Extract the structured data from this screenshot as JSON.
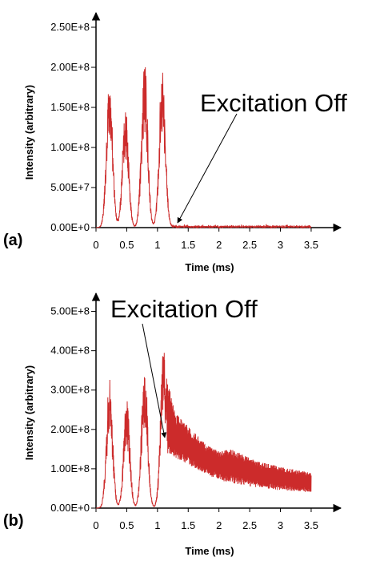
{
  "colors": {
    "signal": "#cc2b2b",
    "axis": "#000000"
  },
  "chart_data": [
    {
      "type": "line",
      "panel_label": "(a)",
      "xlabel": "Time (ms)",
      "ylabel": "Intensity (arbitrary)",
      "xlim": [
        0,
        3.8
      ],
      "ylim": [
        0,
        270000000
      ],
      "x_ticks": [
        "0",
        "0.5",
        "1",
        "1.5",
        "2",
        "2.5",
        "3",
        "3.5"
      ],
      "y_ticks": [
        "0.00E+0",
        "5.00E+7",
        "1.00E+8",
        "1.50E+8",
        "2.00E+8",
        "2.50E+8"
      ],
      "annotation": {
        "text": "Excitation Off",
        "points_to": [
          1.2,
          5000000
        ]
      },
      "series": [
        {
          "peaks": [
            {
              "t": 0.22,
              "amp": 192000000,
              "width": 0.05
            },
            {
              "t": 0.48,
              "amp": 150000000,
              "width": 0.05
            },
            {
              "t": 0.79,
              "amp": 216000000,
              "width": 0.05
            },
            {
              "t": 1.08,
              "amp": 208000000,
              "width": 0.05
            }
          ],
          "tail": {
            "start": 1.2,
            "end": 3.5,
            "level": 2000000,
            "noise": 2000000
          }
        }
      ]
    },
    {
      "type": "line",
      "panel_label": "(b)",
      "xlabel": "Time (ms)",
      "ylabel": "Intensity (arbitrary)",
      "xlim": [
        0,
        3.8
      ],
      "ylim": [
        0,
        550000000
      ],
      "x_ticks": [
        "0",
        "0.5",
        "1",
        "1.5",
        "2",
        "2.5",
        "3",
        "3.5"
      ],
      "y_ticks": [
        "0.00E+0",
        "1.00E+8",
        "2.00E+8",
        "3.00E+8",
        "4.00E+8",
        "5.00E+8"
      ],
      "annotation": {
        "text": "Excitation Off",
        "points_to": [
          1.05,
          180000000
        ]
      },
      "series": [
        {
          "peaks": [
            {
              "t": 0.22,
              "amp": 330000000,
              "width": 0.05
            },
            {
              "t": 0.5,
              "amp": 280000000,
              "width": 0.05
            },
            {
              "t": 0.79,
              "amp": 375000000,
              "width": 0.05
            },
            {
              "t": 1.1,
              "amp": 420000000,
              "width": 0.05
            }
          ],
          "decay": {
            "start": 1.15,
            "end": 3.5,
            "envelope": [
              [
                1.15,
                330000000
              ],
              [
                1.3,
                240000000
              ],
              [
                1.55,
                200000000
              ],
              [
                1.8,
                160000000
              ],
              [
                2.0,
                145000000
              ],
              [
                2.2,
                150000000
              ],
              [
                2.35,
                140000000
              ],
              [
                2.6,
                120000000
              ],
              [
                3.0,
                105000000
              ],
              [
                3.5,
                90000000
              ]
            ],
            "floor": [
              [
                1.15,
                140000000
              ],
              [
                1.5,
                110000000
              ],
              [
                2.0,
                70000000
              ],
              [
                2.5,
                55000000
              ],
              [
                3.0,
                45000000
              ],
              [
                3.5,
                40000000
              ]
            ]
          }
        }
      ]
    }
  ]
}
